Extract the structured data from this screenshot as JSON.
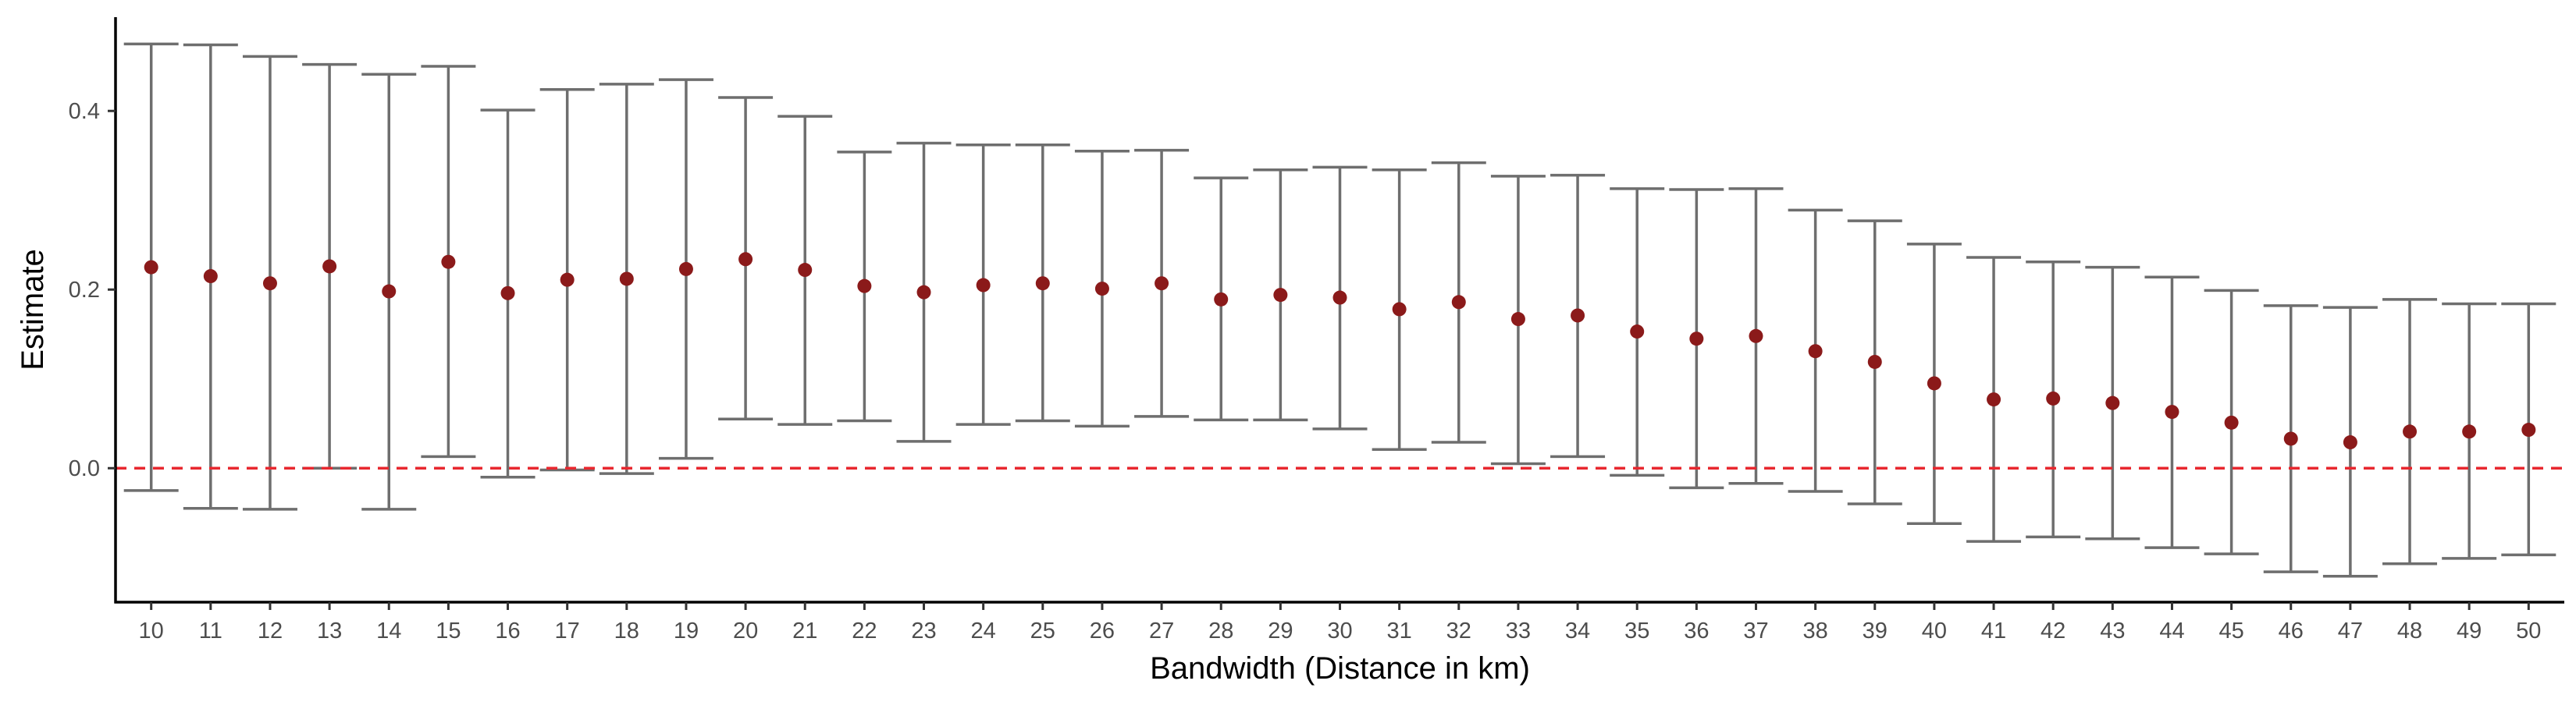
{
  "chart_data": {
    "type": "scatter",
    "title": "",
    "xlabel": "Bandwidth (Distance in km)",
    "ylabel": "Estimate",
    "x": [
      10,
      11,
      12,
      13,
      14,
      15,
      16,
      17,
      18,
      19,
      20,
      21,
      22,
      23,
      24,
      25,
      26,
      27,
      28,
      29,
      30,
      31,
      32,
      33,
      34,
      35,
      36,
      37,
      38,
      39,
      40,
      41,
      42,
      43,
      44,
      45,
      46,
      47,
      48,
      49,
      50
    ],
    "x_tick_labels": [
      "10",
      "11",
      "12",
      "13",
      "14",
      "15",
      "16",
      "17",
      "18",
      "19",
      "20",
      "21",
      "22",
      "23",
      "24",
      "25",
      "26",
      "27",
      "28",
      "29",
      "30",
      "31",
      "32",
      "33",
      "34",
      "35",
      "36",
      "37",
      "38",
      "39",
      "40",
      "41",
      "42",
      "43",
      "44",
      "45",
      "46",
      "47",
      "48",
      "49",
      "50"
    ],
    "series": [
      {
        "estimate": [
          0.225,
          0.215,
          0.207,
          0.226,
          0.198,
          0.231,
          0.196,
          0.211,
          0.212,
          0.223,
          0.234,
          0.222,
          0.204,
          0.197,
          0.205,
          0.207,
          0.201,
          0.207,
          0.189,
          0.194,
          0.191,
          0.178,
          0.186,
          0.167,
          0.171,
          0.153,
          0.145,
          0.148,
          0.131,
          0.119,
          0.095,
          0.077,
          0.078,
          0.073,
          0.063,
          0.051,
          0.033,
          0.029,
          0.041,
          0.041,
          0.043
        ],
        "upper": [
          0.475,
          0.474,
          0.461,
          0.452,
          0.441,
          0.45,
          0.401,
          0.424,
          0.43,
          0.435,
          0.415,
          0.394,
          0.354,
          0.364,
          0.362,
          0.362,
          0.355,
          0.356,
          0.325,
          0.334,
          0.337,
          0.334,
          0.342,
          0.327,
          0.328,
          0.313,
          0.312,
          0.313,
          0.289,
          0.277,
          0.251,
          0.236,
          0.231,
          0.225,
          0.214,
          0.199,
          0.182,
          0.18,
          0.189,
          0.184,
          0.184
        ],
        "lower": [
          -0.025,
          -0.045,
          -0.046,
          0.0,
          -0.046,
          0.013,
          -0.01,
          -0.002,
          -0.006,
          0.011,
          0.055,
          0.049,
          0.053,
          0.03,
          0.049,
          0.053,
          0.047,
          0.058,
          0.054,
          0.054,
          0.044,
          0.021,
          0.029,
          0.005,
          0.013,
          -0.008,
          -0.022,
          -0.017,
          -0.026,
          -0.04,
          -0.062,
          -0.082,
          -0.077,
          -0.079,
          -0.089,
          -0.096,
          -0.116,
          -0.121,
          -0.107,
          -0.101,
          -0.097
        ]
      }
    ],
    "y_ticks": [
      0.0,
      0.2,
      0.4
    ],
    "y_tick_labels": [
      "0.0",
      "0.2",
      "0.4"
    ],
    "ylim": [
      -0.15,
      0.505
    ],
    "xlim": [
      9.4,
      50.6
    ],
    "reference_line": {
      "y": 0.0,
      "style": "dashed"
    },
    "grid": false,
    "legend": "none",
    "colors": {
      "point": "#8b1a1a",
      "errorbar": "#6e6e6e",
      "reference": "#e8282f",
      "axis": "#000000"
    }
  }
}
